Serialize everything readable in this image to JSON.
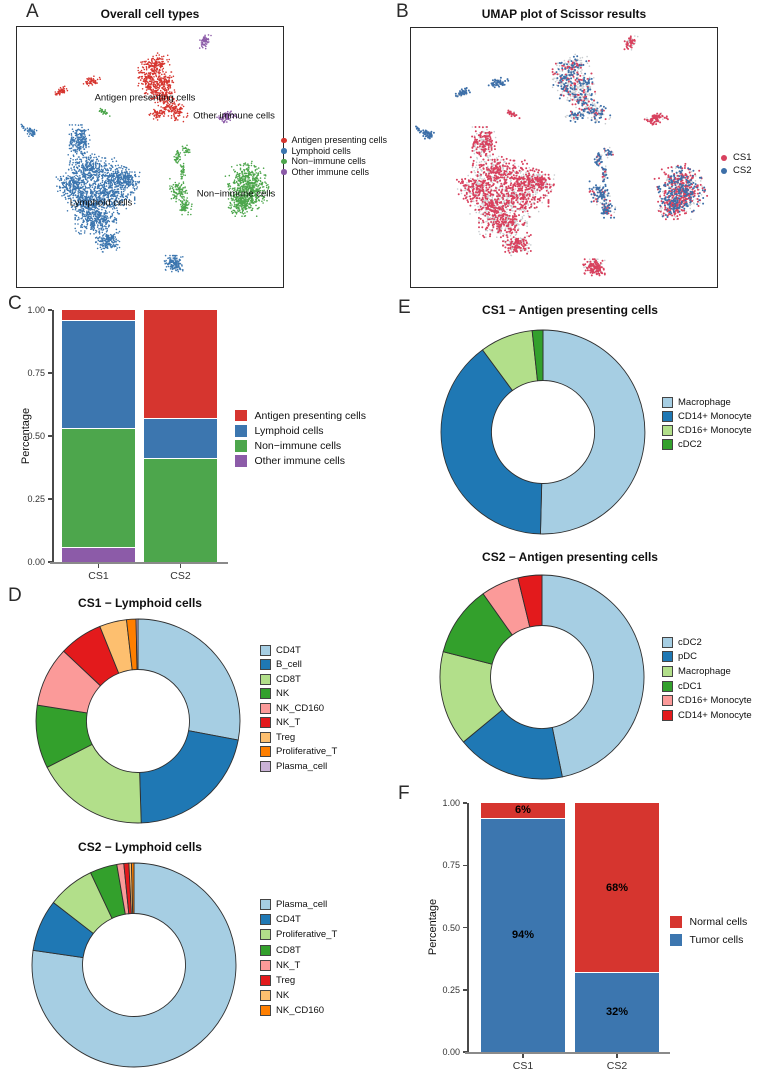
{
  "figure": {
    "panel_letters": [
      "A",
      "B",
      "C",
      "D",
      "E",
      "F"
    ]
  },
  "palette": {
    "celltype": {
      "antigen": "#D6352F",
      "lymphoid": "#3C76AF",
      "non_immune": "#4DA64C",
      "other_immune": "#8C5BA8"
    },
    "scissor": {
      "CS1": "#D8415E",
      "CS2": "#3D6FA8",
      "background": "#C8CCCF"
    },
    "paired": [
      "#A6CEE3",
      "#1F78B4",
      "#B2DF8A",
      "#33A02C",
      "#FB9A99",
      "#E31A1C",
      "#FDBF6F",
      "#FF7F00",
      "#CAB2D6"
    ]
  },
  "panel_a": {
    "title": "Overall cell types",
    "legend": [
      {
        "label": "Antigen presenting cells",
        "color": "#D6352F"
      },
      {
        "label": "Lymphoid cells",
        "color": "#3C76AF"
      },
      {
        "label": "Non−immune cells",
        "color": "#4DA64C"
      },
      {
        "label": "Other immune cells",
        "color": "#8C5BA8"
      }
    ],
    "annotations": [
      {
        "text": "Antigen presenting cells"
      },
      {
        "text": "Other immune cells"
      },
      {
        "text": "Lymphoid cells"
      },
      {
        "text": "Non−immune cells"
      }
    ]
  },
  "panel_b": {
    "title": "UMAP plot of Scissor results",
    "legend": [
      {
        "label": "CS1",
        "color": "#D8415E"
      },
      {
        "label": "CS2",
        "color": "#3D6FA8"
      }
    ]
  },
  "chart_data": [
    {
      "id": "panel_c",
      "type": "bar",
      "stacked": true,
      "title": "",
      "ylabel": "Percentage",
      "ylim": [
        0,
        1
      ],
      "categories": [
        "CS1",
        "CS2"
      ],
      "y_ticks": [
        "0.00",
        "0.25",
        "0.50",
        "0.75",
        "1.00"
      ],
      "legend_position": "right",
      "series": [
        {
          "name": "Antigen presenting cells",
          "color": "#D6352F",
          "values": [
            0.04,
            0.43
          ]
        },
        {
          "name": "Lymphoid cells",
          "color": "#3C76AF",
          "values": [
            0.428,
            0.159
          ]
        },
        {
          "name": "Non−immune cells",
          "color": "#4DA64C",
          "values": [
            0.471,
            0.411
          ]
        },
        {
          "name": "Other immune cells",
          "color": "#8C5BA8",
          "values": [
            0.061,
            0.0
          ]
        }
      ]
    },
    {
      "id": "panel_d_cs1",
      "type": "pie",
      "subtype": "donut",
      "title": "CS1 − Lymphoid cells",
      "labels": [
        "CD4T",
        "B_cell",
        "CD8T",
        "NK",
        "NK_CD160",
        "NK_T",
        "Treg",
        "Proliferative_T",
        "Plasma_cell"
      ],
      "values": [
        28.0,
        21.5,
        18.0,
        10.0,
        9.5,
        6.9,
        4.3,
        1.5,
        0.3
      ],
      "colors": [
        "#A6CEE3",
        "#1F78B4",
        "#B2DF8A",
        "#33A02C",
        "#FB9A99",
        "#E31A1C",
        "#FDBF6F",
        "#FF7F00",
        "#CAB2D6"
      ],
      "legend_position": "right"
    },
    {
      "id": "panel_d_cs2",
      "type": "pie",
      "subtype": "donut",
      "title": "CS2 − Lymphoid cells",
      "labels": [
        "Plasma_cell",
        "CD4T",
        "Proliferative_T",
        "CD8T",
        "NK_T",
        "Treg",
        "NK",
        "NK_CD160"
      ],
      "values": [
        77.3,
        8.2,
        7.5,
        4.3,
        1.1,
        0.8,
        0.4,
        0.4
      ],
      "colors": [
        "#A6CEE3",
        "#1F78B4",
        "#B2DF8A",
        "#33A02C",
        "#FB9A99",
        "#E31A1C",
        "#FDBF6F",
        "#FF7F00"
      ],
      "legend_position": "right"
    },
    {
      "id": "panel_e_cs1",
      "type": "pie",
      "subtype": "donut",
      "title": "CS1 − Antigen presenting cells",
      "labels": [
        "Macrophage",
        "CD14+ Monocyte",
        "CD16+ Monocyte",
        "cDC2"
      ],
      "values": [
        50.4,
        39.5,
        8.4,
        1.7
      ],
      "colors": [
        "#A6CEE3",
        "#1F78B4",
        "#B2DF8A",
        "#33A02C"
      ],
      "legend_position": "right"
    },
    {
      "id": "panel_e_cs2",
      "type": "pie",
      "subtype": "donut",
      "title": "CS2 − Antigen presenting cells",
      "labels": [
        "cDC2",
        "pDC",
        "Macrophage",
        "cDC1",
        "CD16+ Monocyte",
        "CD14+ Monocyte"
      ],
      "values": [
        46.8,
        17.2,
        15.0,
        11.2,
        6.0,
        3.8
      ],
      "colors": [
        "#A6CEE3",
        "#1F78B4",
        "#B2DF8A",
        "#33A02C",
        "#FB9A99",
        "#E31A1C"
      ],
      "legend_position": "right"
    },
    {
      "id": "panel_f",
      "type": "bar",
      "stacked": true,
      "title": "",
      "ylabel": "Percentage",
      "ylim": [
        0,
        1
      ],
      "categories": [
        "CS1",
        "CS2"
      ],
      "y_ticks": [
        "0.00",
        "0.25",
        "0.50",
        "0.75",
        "1.00"
      ],
      "legend_position": "right",
      "series": [
        {
          "name": "Normal cells",
          "color": "#D6352F",
          "values": [
            0.06,
            0.68
          ],
          "data_labels": [
            "6%",
            "68%"
          ]
        },
        {
          "name": "Tumor cells",
          "color": "#3C76AF",
          "values": [
            0.94,
            0.32
          ],
          "data_labels": [
            "94%",
            "32%"
          ]
        }
      ]
    }
  ]
}
